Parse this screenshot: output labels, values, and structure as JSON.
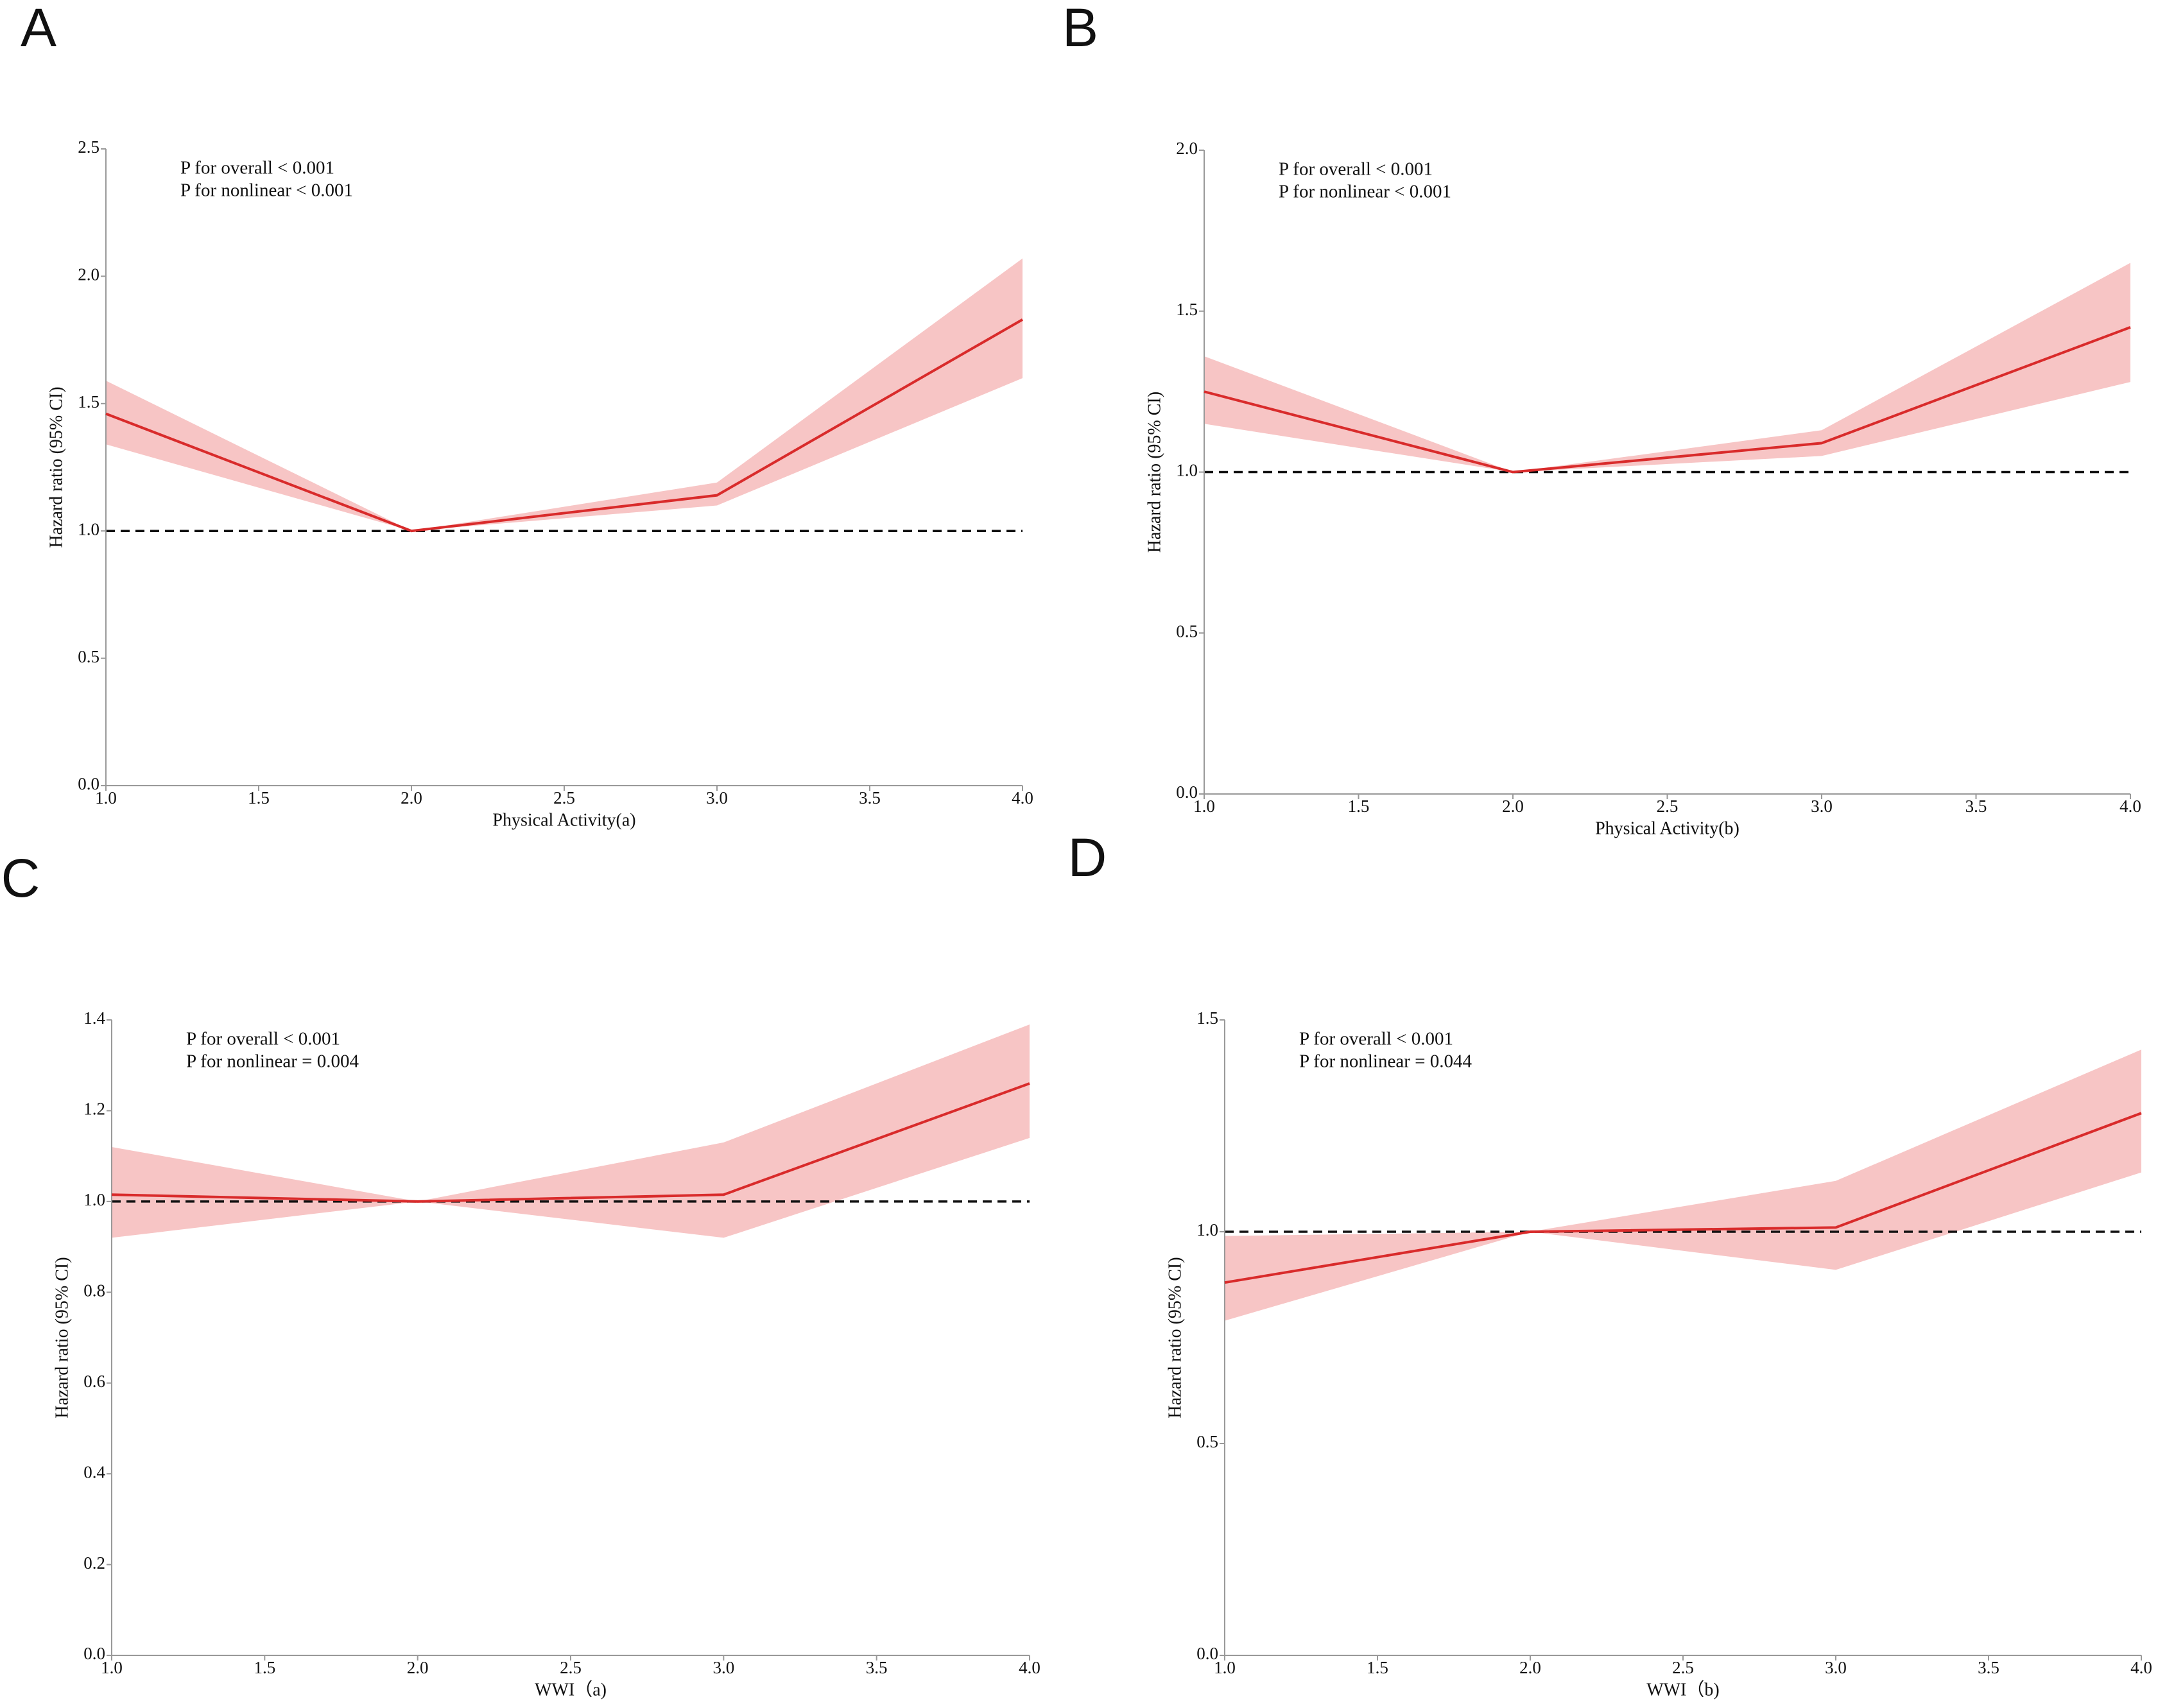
{
  "chart_data": [
    {
      "type": "line",
      "panel": "A",
      "annotations": [
        "P for overall < 0.001",
        "P for nonlinear < 0.001"
      ],
      "xlabel": "Physical Activity(a)",
      "ylabel": "Hazard ratio (95% CI)",
      "x": [
        1,
        2,
        3,
        4
      ],
      "values": [
        1.46,
        1.0,
        1.14,
        1.83
      ],
      "lower": [
        1.34,
        1.0,
        1.1,
        1.6
      ],
      "upper": [
        1.59,
        1.0,
        1.19,
        2.07
      ],
      "color": "#d92b2b",
      "band_color": "#f7c5c5",
      "reference_line": 1,
      "xlim": [
        1,
        4
      ],
      "ylim": [
        0,
        2.5
      ],
      "xticks": [
        {
          "value": 1,
          "label": "1.0"
        },
        1.5,
        {
          "value": 2,
          "label": "2.0"
        },
        2.5,
        {
          "value": 3,
          "label": "3.0"
        },
        3.5,
        {
          "value": 4,
          "label": "4.0"
        }
      ],
      "yticks": [
        {
          "value": 0,
          "label": "0.0"
        },
        0.5,
        {
          "value": 1,
          "label": "1.0"
        },
        1.5,
        {
          "value": 2,
          "label": "2.0"
        },
        2.5
      ]
    },
    {
      "type": "line",
      "panel": "B",
      "annotations": [
        "P for overall < 0.001",
        "P for nonlinear < 0.001"
      ],
      "xlabel": "Physical Activity(b)",
      "ylabel": "Hazard ratio (95% CI)",
      "x": [
        1,
        2,
        3,
        4
      ],
      "values": [
        1.25,
        1.0,
        1.09,
        1.45
      ],
      "lower": [
        1.15,
        1.0,
        1.05,
        1.28
      ],
      "upper": [
        1.36,
        1.0,
        1.13,
        1.65
      ],
      "color": "#d92b2b",
      "band_color": "#f7c5c5",
      "reference_line": 1,
      "xlim": [
        1,
        4
      ],
      "ylim": [
        0,
        2
      ],
      "xticks": [
        {
          "value": 1,
          "label": "1.0"
        },
        1.5,
        {
          "value": 2,
          "label": "2.0"
        },
        2.5,
        {
          "value": 3,
          "label": "3.0"
        },
        3.5,
        {
          "value": 4,
          "label": "4.0"
        }
      ],
      "yticks": [
        {
          "value": 0,
          "label": "0.0"
        },
        0.5,
        {
          "value": 1,
          "label": "1.0"
        },
        1.5,
        {
          "value": 2,
          "label": "2.0"
        }
      ]
    },
    {
      "type": "line",
      "panel": "C",
      "annotations": [
        "P for overall < 0.001",
        "P for nonlinear = 0.004"
      ],
      "xlabel": "WWI（a)",
      "ylabel": "Hazard ratio (95% CI)",
      "x": [
        1,
        2,
        3,
        4
      ],
      "values": [
        1.015,
        1.0,
        1.015,
        1.26
      ],
      "lower": [
        0.92,
        1.0,
        0.92,
        1.14
      ],
      "upper": [
        1.12,
        1.0,
        1.13,
        1.39
      ],
      "color": "#d92b2b",
      "band_color": "#f7c5c5",
      "reference_line": 1,
      "xlim": [
        1,
        4
      ],
      "ylim": [
        0,
        1.4
      ],
      "xticks": [
        {
          "value": 1,
          "label": "1.0"
        },
        1.5,
        {
          "value": 2,
          "label": "2.0"
        },
        2.5,
        {
          "value": 3,
          "label": "3.0"
        },
        3.5,
        {
          "value": 4,
          "label": "4.0"
        }
      ],
      "yticks": [
        {
          "value": 0,
          "label": "0.0"
        },
        0.2,
        0.4,
        0.6,
        0.8,
        {
          "value": 1,
          "label": "1.0"
        },
        1.2,
        1.4
      ]
    },
    {
      "type": "line",
      "panel": "D",
      "annotations": [
        "P for overall < 0.001",
        "P for nonlinear = 0.044"
      ],
      "xlabel": "WWI（b)",
      "ylabel": "Hazard ratio (95% CI)",
      "x": [
        1,
        2,
        3,
        4
      ],
      "values": [
        0.88,
        1.0,
        1.01,
        1.28
      ],
      "lower": [
        0.79,
        1.0,
        0.91,
        1.14
      ],
      "upper": [
        0.99,
        1.0,
        1.12,
        1.43
      ],
      "color": "#d92b2b",
      "band_color": "#f7c5c5",
      "reference_line": 1,
      "xlim": [
        1,
        4
      ],
      "ylim": [
        0,
        1.5
      ],
      "xticks": [
        {
          "value": 1,
          "label": "1.0"
        },
        1.5,
        {
          "value": 2,
          "label": "2.0"
        },
        2.5,
        {
          "value": 3,
          "label": "3.0"
        },
        3.5,
        {
          "value": 4,
          "label": "4.0"
        }
      ],
      "yticks": [
        {
          "value": 0,
          "label": "0.0"
        },
        0.5,
        {
          "value": 1,
          "label": "1.0"
        },
        1.5
      ]
    }
  ]
}
